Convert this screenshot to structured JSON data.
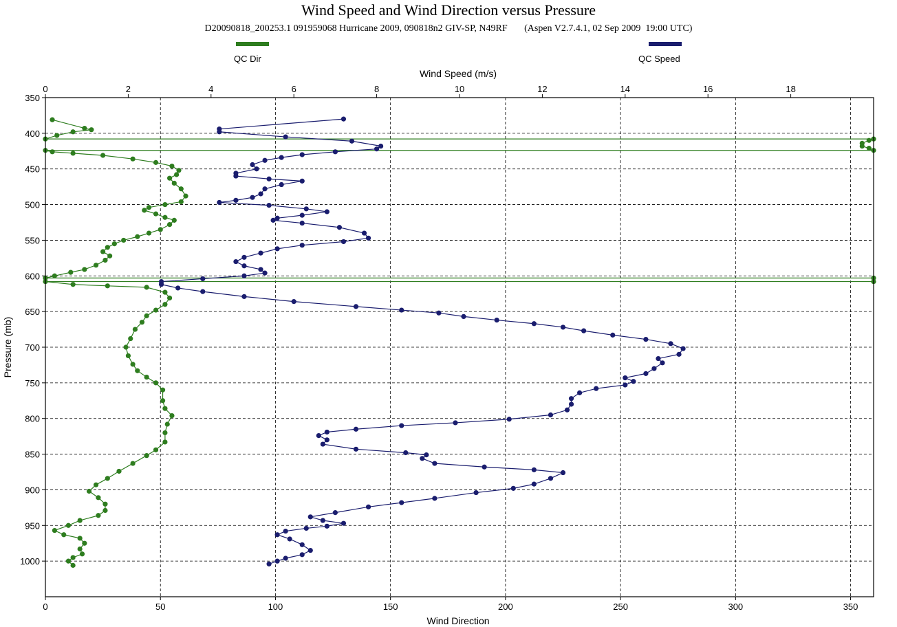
{
  "chart_data": {
    "type": "line",
    "title": "Wind Speed and Wind Direction versus Pressure",
    "subtitle": "D20090818_200253.1 091959068 Hurricane 2009, 090818n2 GIV-SP, N49RF       (Aspen V2.7.4.1, 02 Sep 2009  19:00 UTC)",
    "ylabel": "Pressure (mb)",
    "x_bottom_label": "Wind Direction",
    "x_top_label": "Wind Speed (m/s)",
    "ylim": [
      350,
      1050
    ],
    "y_ticks": [
      "350",
      "400",
      "450",
      "500",
      "550",
      "600",
      "650",
      "700",
      "750",
      "800",
      "850",
      "900",
      "950",
      "1000"
    ],
    "x_bottom_lim": [
      0,
      360
    ],
    "x_bottom_ticks": [
      "0",
      "50",
      "100",
      "150",
      "200",
      "250",
      "300",
      "350"
    ],
    "x_top_lim": [
      0,
      20
    ],
    "x_top_ticks": [
      "0",
      "2",
      "4",
      "6",
      "8",
      "10",
      "12",
      "14",
      "16",
      "18"
    ],
    "grid": true,
    "legend_position": "top",
    "series": [
      {
        "name": "QC Dir",
        "color": "#2e7d1f",
        "axis": "bottom",
        "points": [
          [
            3,
            381
          ],
          [
            17,
            393
          ],
          [
            20,
            395
          ],
          [
            12,
            398
          ],
          [
            5,
            403
          ],
          [
            0,
            408
          ],
          [
            360,
            408
          ],
          [
            358,
            410
          ],
          [
            355,
            414
          ],
          [
            355,
            418
          ],
          [
            358,
            421
          ],
          [
            360,
            424
          ],
          [
            0,
            424
          ],
          [
            3,
            426
          ],
          [
            12,
            428
          ],
          [
            25,
            431
          ],
          [
            38,
            436
          ],
          [
            48,
            441
          ],
          [
            55,
            446
          ],
          [
            58,
            452
          ],
          [
            57,
            458
          ],
          [
            54,
            463
          ],
          [
            56,
            470
          ],
          [
            59,
            478
          ],
          [
            61,
            488
          ],
          [
            59,
            496
          ],
          [
            52,
            500
          ],
          [
            45,
            504
          ],
          [
            43,
            508
          ],
          [
            48,
            513
          ],
          [
            52,
            518
          ],
          [
            56,
            522
          ],
          [
            54,
            528
          ],
          [
            50,
            535
          ],
          [
            45,
            540
          ],
          [
            40,
            545
          ],
          [
            34,
            550
          ],
          [
            30,
            555
          ],
          [
            27,
            560
          ],
          [
            25,
            566
          ],
          [
            28,
            572
          ],
          [
            26,
            578
          ],
          [
            22,
            585
          ],
          [
            17,
            591
          ],
          [
            11,
            595
          ],
          [
            4,
            600
          ],
          [
            0,
            603
          ],
          [
            360,
            603
          ],
          [
            360,
            608
          ],
          [
            0,
            608
          ],
          [
            12,
            612
          ],
          [
            27,
            614
          ],
          [
            44,
            616
          ],
          [
            52,
            623
          ],
          [
            54,
            631
          ],
          [
            52,
            640
          ],
          [
            48,
            648
          ],
          [
            44,
            656
          ],
          [
            42,
            665
          ],
          [
            39,
            675
          ],
          [
            37,
            688
          ],
          [
            35,
            700
          ],
          [
            36,
            712
          ],
          [
            38,
            724
          ],
          [
            40,
            733
          ],
          [
            44,
            742
          ],
          [
            48,
            750
          ],
          [
            51,
            760
          ],
          [
            51,
            775
          ],
          [
            52,
            786
          ],
          [
            55,
            796
          ],
          [
            53,
            808
          ],
          [
            52,
            820
          ],
          [
            52,
            833
          ],
          [
            48,
            844
          ],
          [
            44,
            852
          ],
          [
            38,
            863
          ],
          [
            32,
            874
          ],
          [
            27,
            884
          ],
          [
            22,
            893
          ],
          [
            19,
            902
          ],
          [
            23,
            911
          ],
          [
            26,
            920
          ],
          [
            26,
            929
          ],
          [
            23,
            936
          ],
          [
            15,
            943
          ],
          [
            10,
            950
          ],
          [
            4,
            957
          ],
          [
            8,
            963
          ],
          [
            15,
            968
          ],
          [
            17,
            975
          ],
          [
            15,
            983
          ],
          [
            16,
            990
          ],
          [
            12,
            995
          ],
          [
            10,
            1000
          ],
          [
            12,
            1006
          ]
        ]
      },
      {
        "name": "QC Speed",
        "color": "#1a1d6e",
        "axis": "top",
        "points": [
          [
            7.2,
            380
          ],
          [
            4.2,
            394
          ],
          [
            4.2,
            398
          ],
          [
            5.8,
            405
          ],
          [
            7.4,
            411
          ],
          [
            8.1,
            418
          ],
          [
            8.0,
            422
          ],
          [
            7.0,
            426
          ],
          [
            6.2,
            430
          ],
          [
            5.7,
            434
          ],
          [
            5.3,
            438
          ],
          [
            5.0,
            444
          ],
          [
            5.1,
            450
          ],
          [
            4.6,
            456
          ],
          [
            4.6,
            460
          ],
          [
            5.4,
            464
          ],
          [
            6.2,
            467
          ],
          [
            5.7,
            472
          ],
          [
            5.3,
            478
          ],
          [
            5.2,
            485
          ],
          [
            5.0,
            490
          ],
          [
            4.6,
            494
          ],
          [
            4.2,
            497
          ],
          [
            5.4,
            501
          ],
          [
            6.3,
            506
          ],
          [
            6.8,
            510
          ],
          [
            6.2,
            515
          ],
          [
            5.6,
            519
          ],
          [
            5.5,
            522
          ],
          [
            6.2,
            526
          ],
          [
            7.1,
            532
          ],
          [
            7.7,
            540
          ],
          [
            7.8,
            547
          ],
          [
            7.2,
            552
          ],
          [
            6.2,
            557
          ],
          [
            5.6,
            562
          ],
          [
            5.2,
            568
          ],
          [
            4.8,
            574
          ],
          [
            4.6,
            580
          ],
          [
            4.8,
            586
          ],
          [
            5.2,
            591
          ],
          [
            5.3,
            596
          ],
          [
            4.8,
            600
          ],
          [
            3.8,
            604
          ],
          [
            2.8,
            608
          ],
          [
            2.8,
            612
          ],
          [
            3.2,
            617
          ],
          [
            3.8,
            622
          ],
          [
            4.8,
            629
          ],
          [
            6.0,
            636
          ],
          [
            7.5,
            643
          ],
          [
            8.6,
            648
          ],
          [
            9.5,
            652
          ],
          [
            10.1,
            657
          ],
          [
            10.9,
            662
          ],
          [
            11.8,
            667
          ],
          [
            12.5,
            672
          ],
          [
            13.0,
            677
          ],
          [
            13.7,
            683
          ],
          [
            14.5,
            689
          ],
          [
            15.1,
            695
          ],
          [
            15.4,
            702
          ],
          [
            15.3,
            710
          ],
          [
            14.8,
            716
          ],
          [
            14.9,
            722
          ],
          [
            14.7,
            730
          ],
          [
            14.5,
            737
          ],
          [
            14.0,
            743
          ],
          [
            14.2,
            748
          ],
          [
            14.0,
            753
          ],
          [
            13.3,
            758
          ],
          [
            12.9,
            764
          ],
          [
            12.7,
            772
          ],
          [
            12.7,
            780
          ],
          [
            12.6,
            788
          ],
          [
            12.2,
            795
          ],
          [
            11.2,
            801
          ],
          [
            9.9,
            806
          ],
          [
            8.6,
            810
          ],
          [
            7.5,
            815
          ],
          [
            6.8,
            819
          ],
          [
            6.6,
            824
          ],
          [
            6.8,
            830
          ],
          [
            6.7,
            836
          ],
          [
            7.5,
            843
          ],
          [
            8.7,
            848
          ],
          [
            9.2,
            851
          ],
          [
            9.1,
            856
          ],
          [
            9.4,
            863
          ],
          [
            10.6,
            868
          ],
          [
            11.8,
            872
          ],
          [
            12.5,
            876
          ],
          [
            12.2,
            884
          ],
          [
            11.8,
            892
          ],
          [
            11.3,
            898
          ],
          [
            10.4,
            904
          ],
          [
            9.4,
            912
          ],
          [
            8.6,
            918
          ],
          [
            7.8,
            924
          ],
          [
            7.0,
            932
          ],
          [
            6.4,
            938
          ],
          [
            6.7,
            943
          ],
          [
            7.2,
            947
          ],
          [
            6.8,
            951
          ],
          [
            6.3,
            954
          ],
          [
            5.8,
            958
          ],
          [
            5.6,
            963
          ],
          [
            5.9,
            969
          ],
          [
            6.2,
            977
          ],
          [
            6.4,
            985
          ],
          [
            6.2,
            991
          ],
          [
            5.8,
            996
          ],
          [
            5.6,
            1000
          ],
          [
            5.4,
            1004
          ]
        ]
      }
    ]
  }
}
